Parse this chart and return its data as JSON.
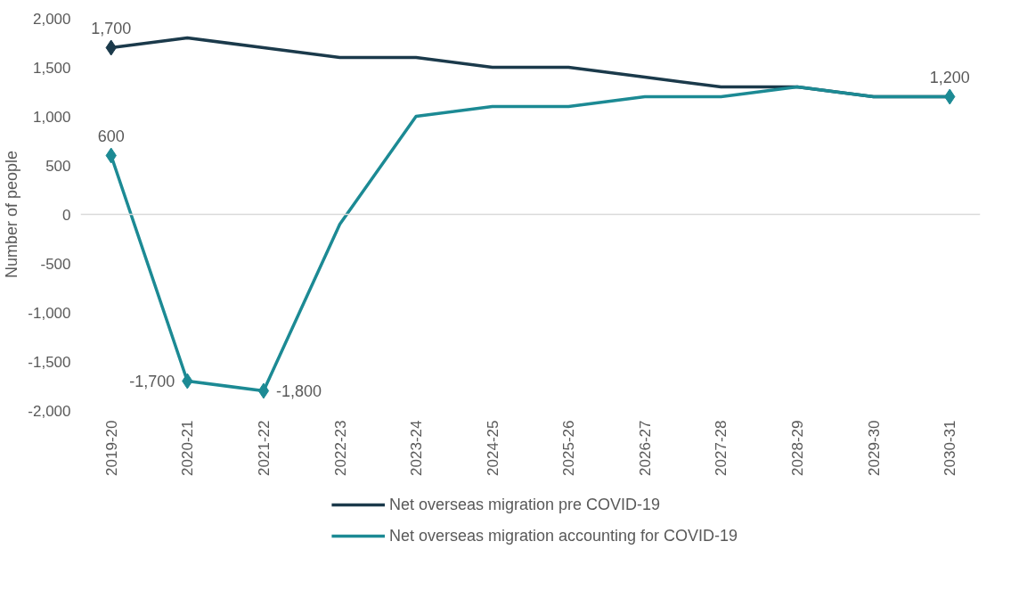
{
  "chart_data": {
    "type": "line",
    "ylabel": "Number of people",
    "categories": [
      "2019-20",
      "2020-21",
      "2021-22",
      "2022-23",
      "2023-24",
      "2024-25",
      "2025-26",
      "2026-27",
      "2027-28",
      "2028-29",
      "2029-30",
      "2030-31"
    ],
    "series": [
      {
        "name": "Net overseas migration pre COVID-19",
        "color": "#1b3a4b",
        "values": [
          1700,
          1800,
          1700,
          1600,
          1600,
          1500,
          1500,
          1400,
          1300,
          1300,
          1200,
          1200
        ],
        "value_labels": [
          "1,700",
          null,
          null,
          null,
          null,
          null,
          null,
          null,
          null,
          null,
          null,
          null
        ]
      },
      {
        "name": "Net overseas migration accounting for COVID-19",
        "color": "#1c8a94",
        "values": [
          600,
          -1700,
          -1800,
          -100,
          1000,
          1100,
          1100,
          1200,
          1200,
          1300,
          1200,
          1200
        ],
        "value_labels": [
          "600",
          "-1,700",
          "-1,800",
          null,
          null,
          null,
          null,
          null,
          null,
          null,
          null,
          "1,200"
        ]
      }
    ],
    "ylim": [
      -2000,
      2000
    ],
    "yticks": [
      {
        "value": -2000,
        "label": "-2,000"
      },
      {
        "value": -1500,
        "label": "-1,500"
      },
      {
        "value": -1000,
        "label": "-1,000"
      },
      -500,
      0,
      500,
      {
        "value": 1000,
        "label": "1,000"
      },
      {
        "value": 1500,
        "label": "1,500"
      },
      {
        "value": 2000,
        "label": "2,000"
      }
    ],
    "ref_lines": [
      {
        "axis": "y",
        "value": 0,
        "color": "#d9d9d9"
      }
    ],
    "grid": false,
    "legend": "bottom",
    "line_style": "solid"
  }
}
